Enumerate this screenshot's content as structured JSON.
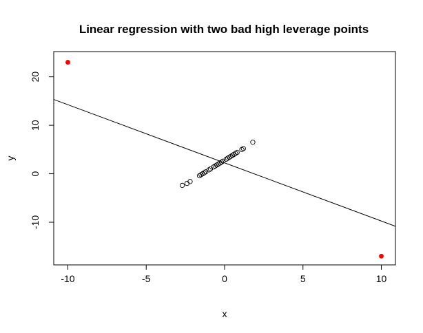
{
  "chart_data": {
    "type": "scatter",
    "title": "Linear regression with two bad high leverage points",
    "xlabel": "x",
    "ylabel": "y",
    "xlim": [
      -10.9,
      10.9
    ],
    "ylim": [
      -18.8,
      25.2
    ],
    "x_ticks": [
      -10,
      -5,
      0,
      5,
      10
    ],
    "y_ticks": [
      -10,
      0,
      10,
      20
    ],
    "grid": false,
    "legend": "none",
    "series": [
      {
        "marker": "open-circle",
        "color": "#000000",
        "points": [
          [
            -2.7,
            -2.4
          ],
          [
            -2.4,
            -2.0
          ],
          [
            -2.2,
            -1.6
          ],
          [
            -1.6,
            -0.4
          ],
          [
            -1.5,
            -0.2
          ],
          [
            -1.4,
            0.0
          ],
          [
            -1.3,
            0.2
          ],
          [
            -1.2,
            0.4
          ],
          [
            -1.0,
            0.8
          ],
          [
            -0.9,
            1.0
          ],
          [
            -0.7,
            1.4
          ],
          [
            -0.6,
            1.6
          ],
          [
            -0.5,
            1.8
          ],
          [
            -0.4,
            2.0
          ],
          [
            -0.3,
            2.2
          ],
          [
            -0.2,
            2.4
          ],
          [
            -0.1,
            2.6
          ],
          [
            0.1,
            3.0
          ],
          [
            0.2,
            3.2
          ],
          [
            0.3,
            3.4
          ],
          [
            0.4,
            3.6
          ],
          [
            0.5,
            3.8
          ],
          [
            0.6,
            4.0
          ],
          [
            0.7,
            4.2
          ],
          [
            0.8,
            4.4
          ],
          [
            1.1,
            5.0
          ],
          [
            1.2,
            5.2
          ],
          [
            1.8,
            6.5
          ]
        ]
      },
      {
        "marker": "filled-circle",
        "color": "#ff0000",
        "points": [
          [
            -10,
            23
          ],
          [
            10,
            -17
          ]
        ]
      }
    ],
    "regression_line": {
      "intercept": 2.25,
      "slope": -1.2,
      "color": "#000000"
    }
  }
}
